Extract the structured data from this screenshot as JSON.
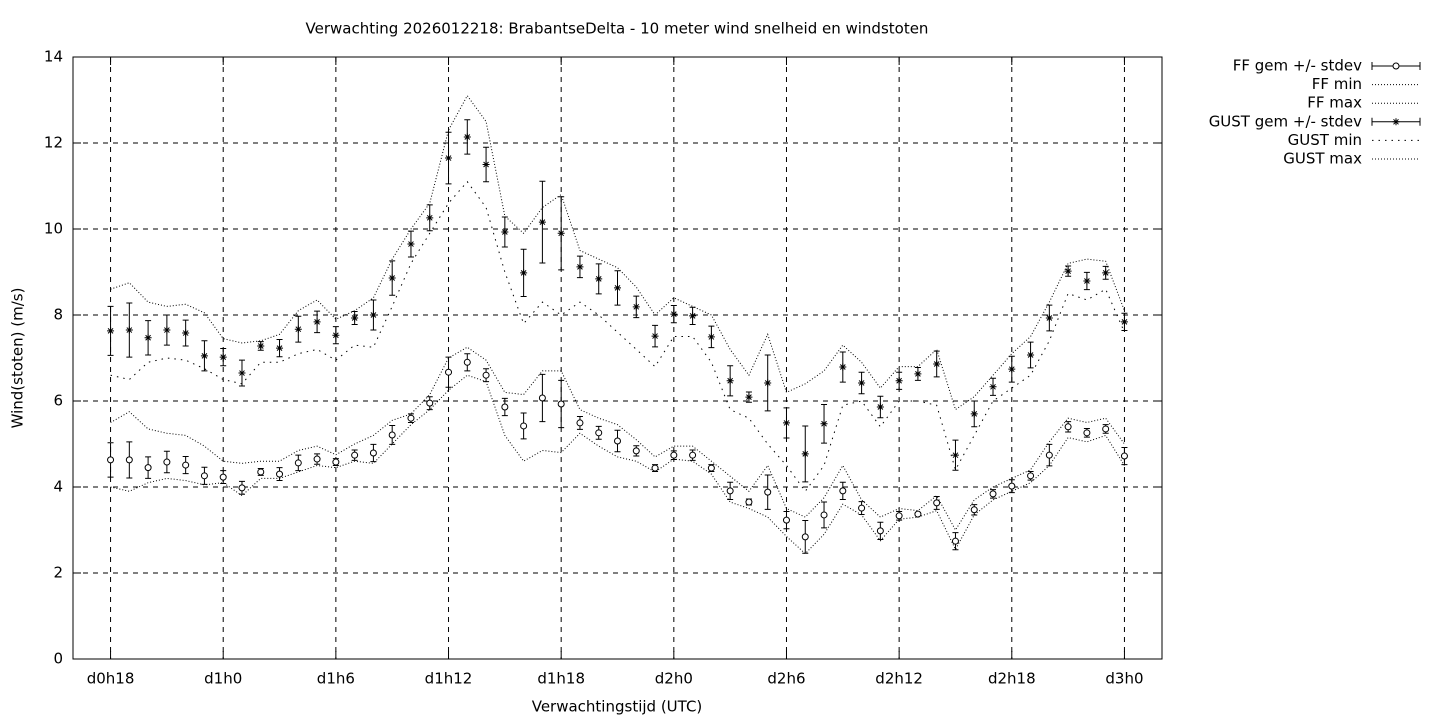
{
  "chart_data": {
    "type": "errorbar",
    "title": "Verwachting 2026012218: BrabantseDelta - 10 meter wind snelheid en windstoten",
    "x_label": "Verwachtingstijd (UTC)",
    "y_label": "Wind(stoten) (m/s)",
    "x": [
      0,
      1,
      2,
      3,
      4,
      5,
      6,
      7,
      8,
      9,
      10,
      11,
      12,
      13,
      14,
      15,
      16,
      17,
      18,
      19,
      20,
      21,
      22,
      23,
      24,
      25,
      26,
      27,
      28,
      29,
      30,
      31,
      32,
      33,
      34,
      35,
      36,
      37,
      38,
      39,
      40,
      41,
      42,
      43,
      44,
      45,
      46,
      47,
      48,
      49,
      50,
      51,
      52,
      53,
      54
    ],
    "xlim": [
      -2,
      56
    ],
    "xticks": [
      {
        "value": 0,
        "label": "d0h18"
      },
      {
        "value": 6,
        "label": "d1h0"
      },
      {
        "value": 12,
        "label": "d1h6"
      },
      {
        "value": 18,
        "label": "d1h12"
      },
      {
        "value": 24,
        "label": "d1h18"
      },
      {
        "value": 30,
        "label": "d2h0"
      },
      {
        "value": 36,
        "label": "d2h6"
      },
      {
        "value": 42,
        "label": "d2h12"
      },
      {
        "value": 48,
        "label": "d2h18"
      },
      {
        "value": 54,
        "label": "d3h0"
      }
    ],
    "ylim": [
      0,
      14
    ],
    "yticks": [
      0,
      2,
      4,
      6,
      8,
      10,
      12,
      14
    ],
    "grid": true,
    "legend": "outside-top-right",
    "series": [
      {
        "name": "FF gem +/- stdev",
        "color": "#000000",
        "line_style": "errorbar",
        "marker": "circle",
        "values": [
          4.63,
          4.63,
          4.45,
          4.58,
          4.51,
          4.26,
          4.23,
          3.98,
          4.35,
          4.3,
          4.56,
          4.65,
          4.58,
          4.74,
          4.79,
          5.21,
          5.6,
          5.95,
          6.67,
          6.9,
          6.6,
          5.86,
          5.42,
          6.07,
          5.93,
          5.49,
          5.26,
          5.07,
          4.84,
          4.44,
          4.74,
          4.74,
          4.44,
          3.91,
          3.65,
          3.88,
          3.23,
          2.84,
          3.35,
          3.91,
          3.51,
          2.98,
          3.33,
          3.37,
          3.63,
          2.74,
          3.47,
          3.84,
          4.02,
          4.26,
          4.74,
          5.4,
          5.26,
          5.35,
          4.72
        ],
        "errors": [
          0.4,
          0.42,
          0.25,
          0.25,
          0.2,
          0.2,
          0.15,
          0.15,
          0.08,
          0.15,
          0.18,
          0.12,
          0.08,
          0.12,
          0.2,
          0.22,
          0.1,
          0.15,
          0.35,
          0.2,
          0.15,
          0.2,
          0.3,
          0.55,
          0.55,
          0.15,
          0.15,
          0.25,
          0.12,
          0.08,
          0.1,
          0.12,
          0.08,
          0.2,
          0.07,
          0.4,
          0.2,
          0.38,
          0.3,
          0.2,
          0.15,
          0.2,
          0.1,
          0.03,
          0.15,
          0.2,
          0.12,
          0.1,
          0.15,
          0.1,
          0.25,
          0.12,
          0.1,
          0.1,
          0.2
        ]
      },
      {
        "name": "FF min",
        "color": "#000000",
        "line_style": "dotted",
        "values": [
          4.0,
          3.9,
          4.1,
          4.2,
          4.15,
          4.05,
          4.1,
          3.8,
          4.2,
          4.2,
          4.35,
          4.5,
          4.45,
          4.6,
          4.55,
          5.0,
          5.45,
          5.8,
          6.25,
          6.6,
          6.45,
          5.2,
          4.6,
          4.85,
          4.8,
          5.25,
          4.95,
          4.7,
          4.6,
          4.35,
          4.65,
          4.6,
          4.3,
          3.65,
          3.5,
          3.3,
          2.85,
          2.45,
          2.9,
          3.6,
          3.35,
          2.75,
          3.25,
          3.3,
          3.45,
          2.55,
          3.35,
          3.7,
          3.9,
          4.1,
          4.5,
          5.15,
          5.05,
          5.2,
          4.5
        ]
      },
      {
        "name": "FF max",
        "color": "#000000",
        "line_style": "dotted",
        "values": [
          5.5,
          5.75,
          5.35,
          5.25,
          5.2,
          4.95,
          4.6,
          4.55,
          4.6,
          4.6,
          4.85,
          4.95,
          4.75,
          5.0,
          5.2,
          5.55,
          5.7,
          6.15,
          7.0,
          7.25,
          6.95,
          6.2,
          6.15,
          6.7,
          6.7,
          5.8,
          5.6,
          5.45,
          5.1,
          4.7,
          4.95,
          4.95,
          4.6,
          4.25,
          3.9,
          4.5,
          3.5,
          3.3,
          3.75,
          4.5,
          3.7,
          3.3,
          3.5,
          3.45,
          3.8,
          3.0,
          3.7,
          4.0,
          4.2,
          4.4,
          5.05,
          5.6,
          5.5,
          5.6,
          5.0
        ]
      },
      {
        "name": "GUST gem +/- stdev",
        "color": "#000000",
        "line_style": "errorbar",
        "marker": "star",
        "values": [
          7.63,
          7.65,
          7.47,
          7.65,
          7.58,
          7.05,
          7.02,
          6.65,
          7.28,
          7.23,
          7.67,
          7.84,
          7.53,
          7.93,
          8.0,
          8.86,
          9.65,
          10.26,
          11.65,
          12.14,
          11.5,
          9.93,
          8.98,
          10.16,
          9.9,
          9.12,
          8.84,
          8.63,
          8.19,
          7.51,
          8.02,
          7.98,
          7.49,
          6.47,
          6.09,
          6.42,
          5.49,
          4.77,
          5.47,
          6.79,
          6.42,
          5.86,
          6.47,
          6.63,
          6.86,
          4.74,
          5.7,
          6.33,
          6.74,
          7.07,
          7.93,
          9.02,
          8.79,
          8.98,
          7.84
        ],
        "errors": [
          0.57,
          0.63,
          0.4,
          0.35,
          0.3,
          0.35,
          0.2,
          0.3,
          0.1,
          0.2,
          0.3,
          0.25,
          0.2,
          0.15,
          0.35,
          0.4,
          0.3,
          0.3,
          0.6,
          0.4,
          0.4,
          0.35,
          0.55,
          0.95,
          0.85,
          0.25,
          0.35,
          0.4,
          0.25,
          0.25,
          0.2,
          0.2,
          0.25,
          0.35,
          0.12,
          0.65,
          0.35,
          0.65,
          0.45,
          0.35,
          0.25,
          0.25,
          0.2,
          0.15,
          0.3,
          0.35,
          0.3,
          0.2,
          0.3,
          0.3,
          0.3,
          0.12,
          0.2,
          0.15,
          0.2
        ]
      },
      {
        "name": "GUST min",
        "color": "#000000",
        "line_style": "sparse-dotted",
        "values": [
          6.6,
          6.5,
          6.9,
          7.0,
          6.95,
          6.75,
          6.5,
          6.4,
          6.9,
          6.9,
          7.1,
          7.2,
          6.95,
          7.3,
          7.25,
          8.2,
          9.2,
          9.9,
          10.6,
          11.1,
          10.5,
          9.0,
          7.8,
          8.3,
          8.0,
          8.3,
          8.0,
          7.6,
          7.2,
          6.8,
          7.5,
          7.5,
          6.9,
          5.8,
          5.6,
          5.0,
          4.5,
          3.9,
          4.5,
          5.9,
          6.0,
          5.4,
          6.0,
          6.0,
          5.9,
          4.4,
          5.2,
          6.0,
          6.3,
          6.6,
          7.4,
          8.5,
          8.35,
          8.6,
          7.6
        ]
      },
      {
        "name": "GUST max",
        "color": "#000000",
        "line_style": "dotted",
        "values": [
          8.6,
          8.75,
          8.3,
          8.2,
          8.25,
          8.05,
          7.45,
          7.35,
          7.4,
          7.55,
          8.1,
          8.35,
          7.9,
          8.1,
          8.4,
          9.3,
          10.0,
          10.6,
          12.3,
          13.1,
          12.5,
          10.3,
          9.9,
          10.5,
          10.8,
          9.5,
          9.3,
          9.1,
          8.65,
          8.0,
          8.4,
          8.2,
          8.0,
          7.2,
          6.6,
          7.55,
          6.2,
          6.4,
          6.7,
          7.3,
          6.9,
          6.3,
          6.8,
          6.8,
          7.2,
          5.8,
          6.1,
          6.6,
          7.1,
          7.5,
          8.3,
          9.2,
          9.3,
          9.25,
          8.1
        ]
      }
    ]
  }
}
